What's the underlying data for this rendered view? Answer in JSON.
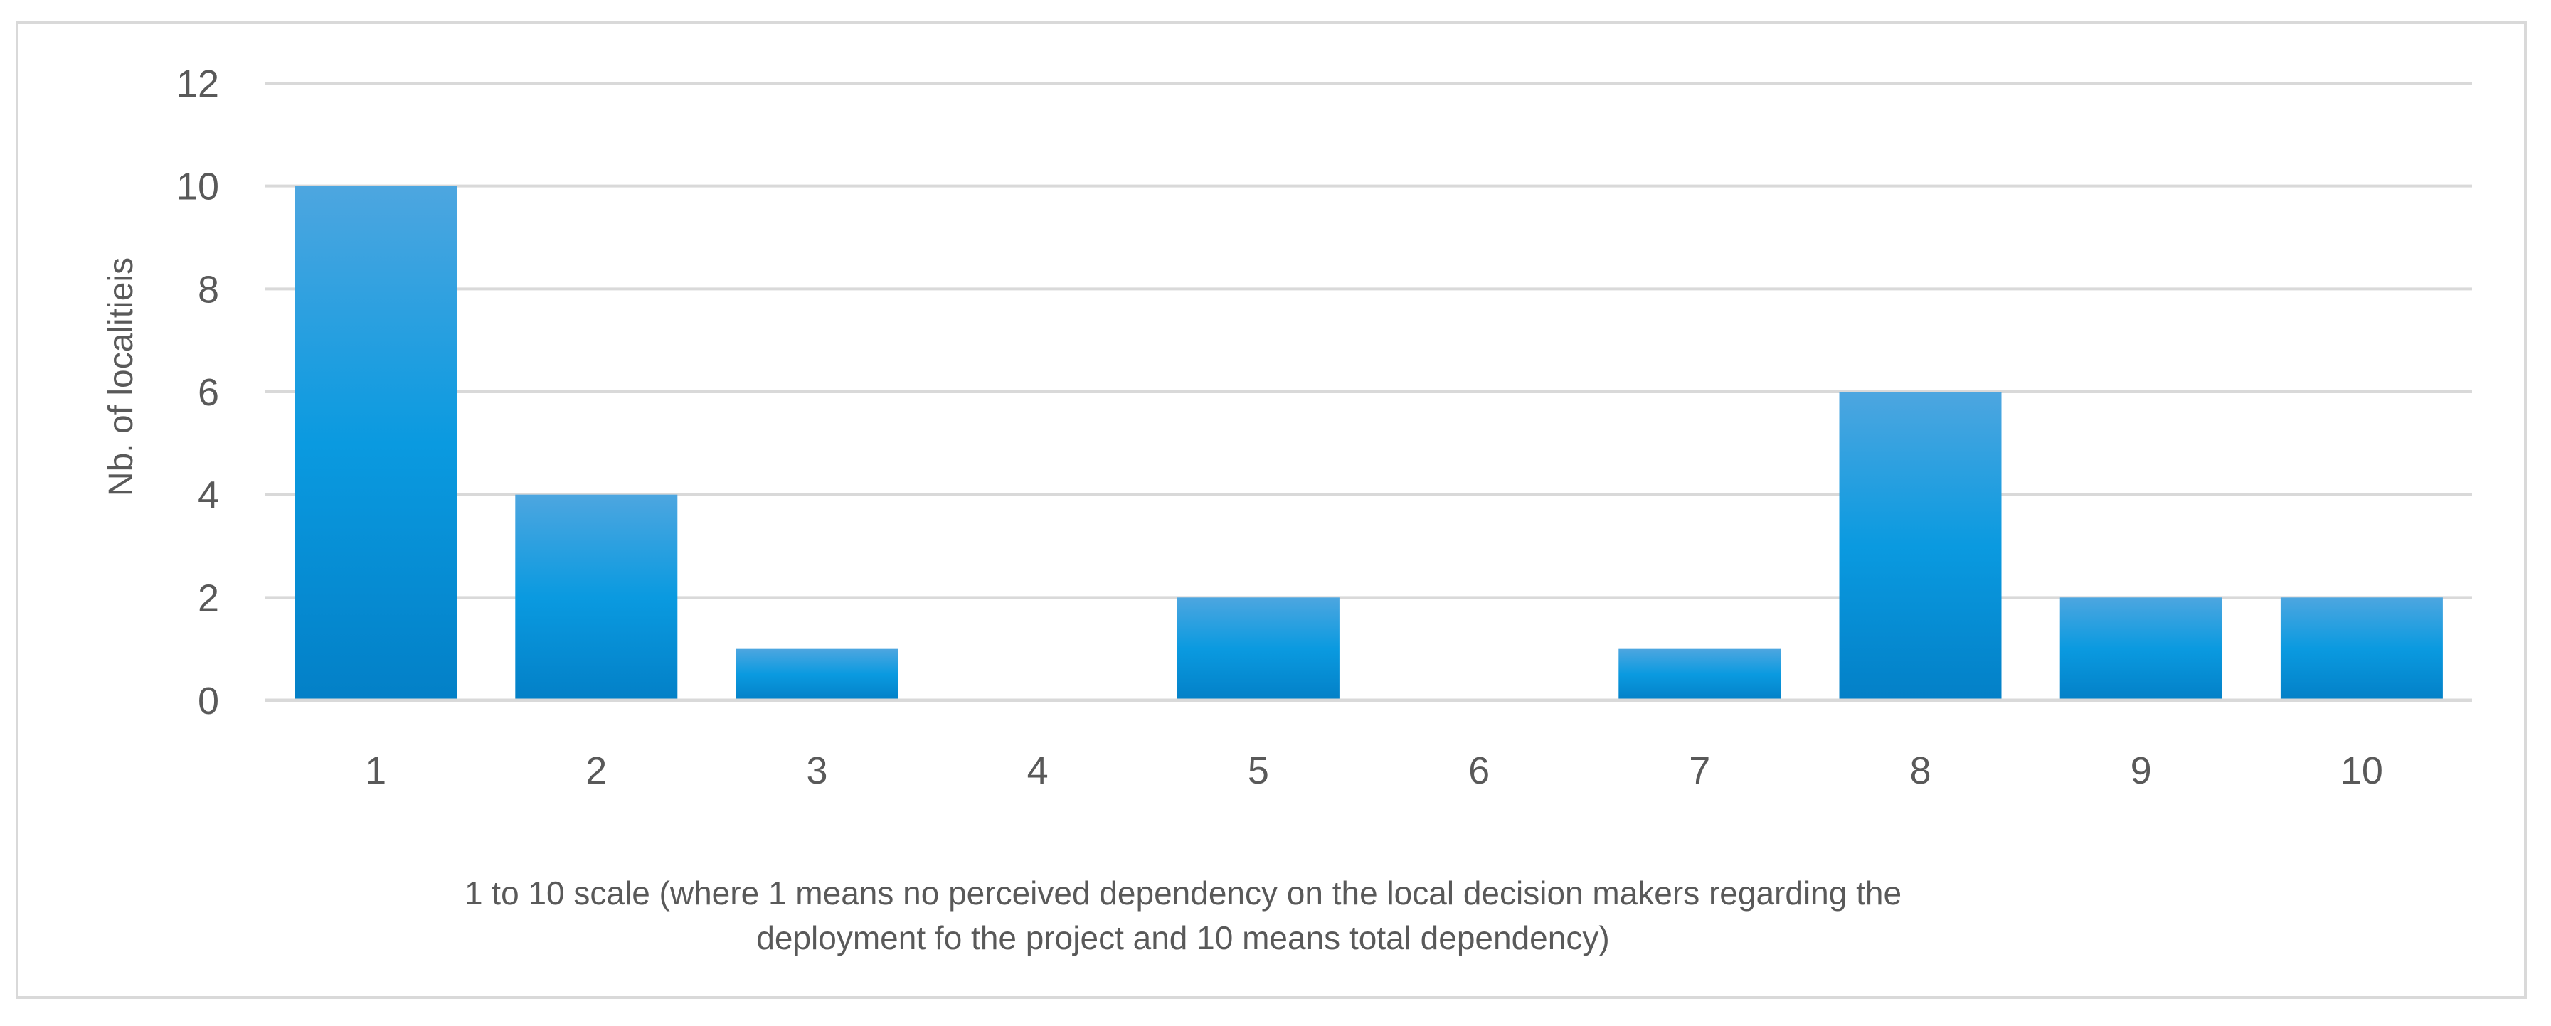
{
  "chart_data": {
    "type": "bar",
    "title": "",
    "categories": [
      "1",
      "2",
      "3",
      "4",
      "5",
      "6",
      "7",
      "8",
      "9",
      "10"
    ],
    "values": [
      10,
      4,
      1,
      0,
      2,
      0,
      1,
      6,
      2,
      2
    ],
    "ylabel": "Nb. of localitieis",
    "xlabel_lines": [
      "1 to 10 scale (where 1 means no perceived dependency on the local decision makers regarding the",
      "deployment fo the project and 10 means total dependency)"
    ],
    "ylim": [
      0,
      12
    ],
    "yticks": [
      "0",
      "2",
      "4",
      "6",
      "8",
      "10",
      "12"
    ],
    "grid": true,
    "legend": "none",
    "colors": {
      "bar_top": "#4da6e0",
      "bar_mid": "#0a9ae0",
      "bar_bottom": "#0380c7",
      "grid": "#d9d9d9",
      "text": "#595959"
    }
  }
}
